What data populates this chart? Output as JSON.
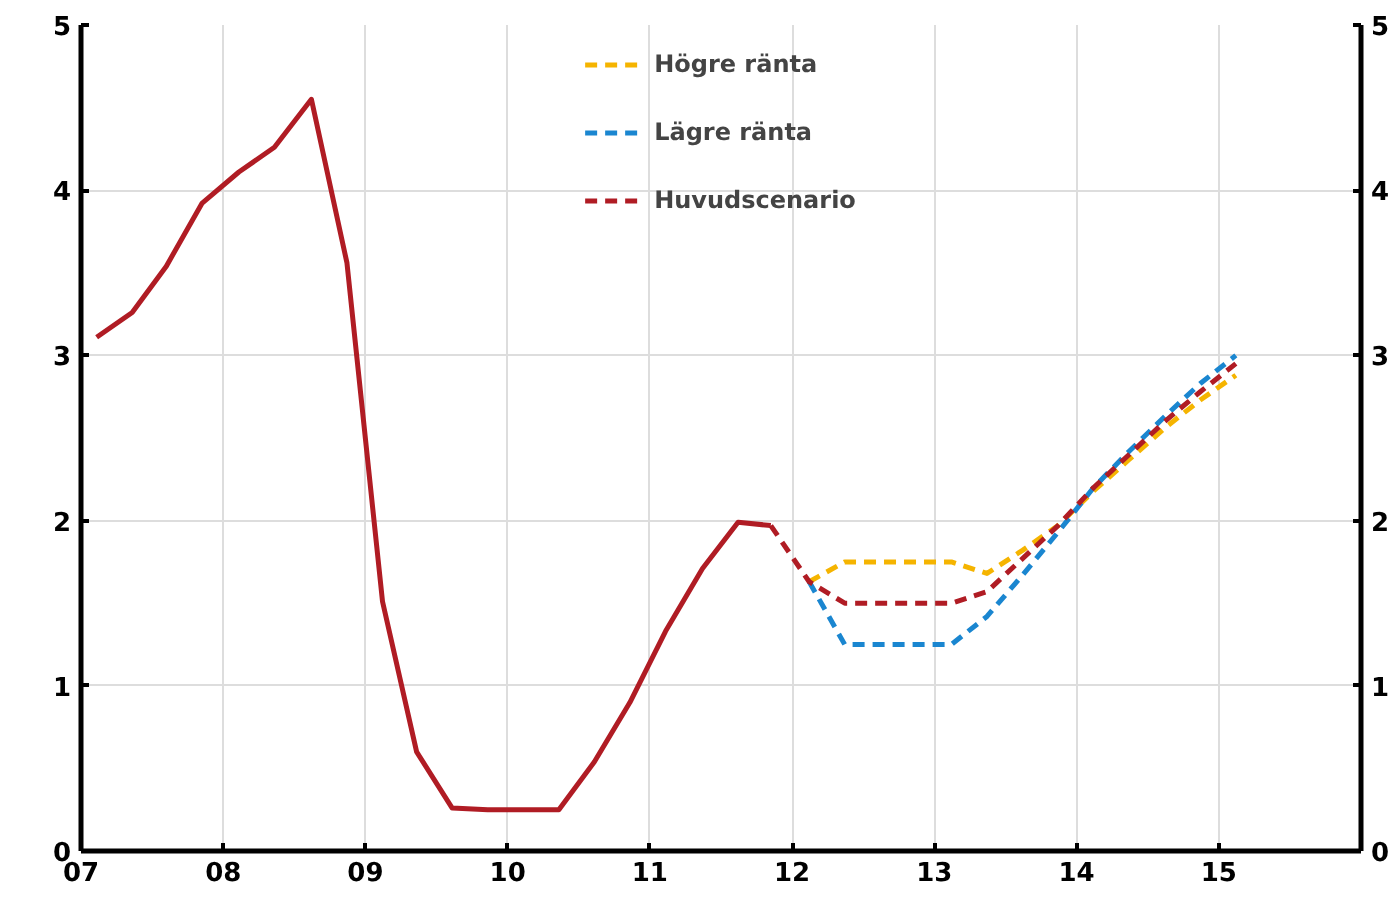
{
  "chart_data": {
    "type": "line",
    "xlim": [
      2007,
      2016
    ],
    "xticks": [
      {
        "value": 2007,
        "label": "07"
      },
      {
        "value": 2008,
        "label": "08"
      },
      {
        "value": 2009,
        "label": "09"
      },
      {
        "value": 2010,
        "label": "10"
      },
      {
        "value": 2011,
        "label": "11"
      },
      {
        "value": 2012,
        "label": "12"
      },
      {
        "value": 2013,
        "label": "13"
      },
      {
        "value": 2014,
        "label": "14"
      },
      {
        "value": 2015,
        "label": "15"
      }
    ],
    "ylim": [
      0,
      5
    ],
    "yticks": [
      0,
      1,
      2,
      3,
      4,
      5
    ],
    "y2lim": [
      0,
      5
    ],
    "y2ticks": [
      0,
      1,
      2,
      3,
      4,
      5
    ],
    "grid": true,
    "legend": "top",
    "marker": "none",
    "series": [
      {
        "color": "#b01c24",
        "line_style": "solid",
        "x": [
          2007.11,
          2007.36,
          2007.6,
          2007.85,
          2008.11,
          2008.36,
          2008.62,
          2008.87,
          2009.12,
          2009.36,
          2009.61,
          2009.86,
          2010.11,
          2010.36,
          2010.61,
          2010.86,
          2011.11,
          2011.37,
          2011.62,
          2011.85
        ],
        "values": [
          3.11,
          3.26,
          3.54,
          3.92,
          4.11,
          4.26,
          4.55,
          3.56,
          1.51,
          0.6,
          0.26,
          0.25,
          0.25,
          0.25,
          0.54,
          0.9,
          1.33,
          1.71,
          1.99,
          1.97
        ]
      },
      {
        "name": "Högre ränta",
        "color": "#f5b400",
        "line_style": "dashed",
        "x": [
          2012.12,
          2012.37,
          2012.62,
          2012.87,
          2013.12,
          2013.37,
          2013.62,
          2013.87,
          2014.12,
          2014.37,
          2014.62,
          2014.87,
          2015.12
        ],
        "values": [
          1.63,
          1.75,
          1.75,
          1.75,
          1.75,
          1.68,
          1.82,
          1.97,
          2.18,
          2.37,
          2.56,
          2.73,
          2.88
        ]
      },
      {
        "name": "Lägre ränta",
        "color": "#1a86d0",
        "line_style": "dashed",
        "x": [
          2012.12,
          2012.37,
          2012.62,
          2012.87,
          2013.12,
          2013.37,
          2013.62,
          2013.87,
          2014.12,
          2014.37,
          2014.62,
          2014.87,
          2015.12
        ],
        "values": [
          1.63,
          1.25,
          1.25,
          1.25,
          1.25,
          1.42,
          1.67,
          1.93,
          2.2,
          2.42,
          2.63,
          2.83,
          3.0
        ]
      },
      {
        "name": "Huvudscenario",
        "color": "#b01c24",
        "line_style": "dashed",
        "x": [
          2011.85,
          2012.12,
          2012.37,
          2012.62,
          2012.87,
          2013.12,
          2013.37,
          2013.62,
          2013.87,
          2014.12,
          2014.37,
          2014.62,
          2014.87,
          2015.12
        ],
        "values": [
          1.97,
          1.63,
          1.5,
          1.5,
          1.5,
          1.5,
          1.57,
          1.77,
          1.97,
          2.2,
          2.4,
          2.6,
          2.78,
          2.95
        ]
      }
    ]
  }
}
